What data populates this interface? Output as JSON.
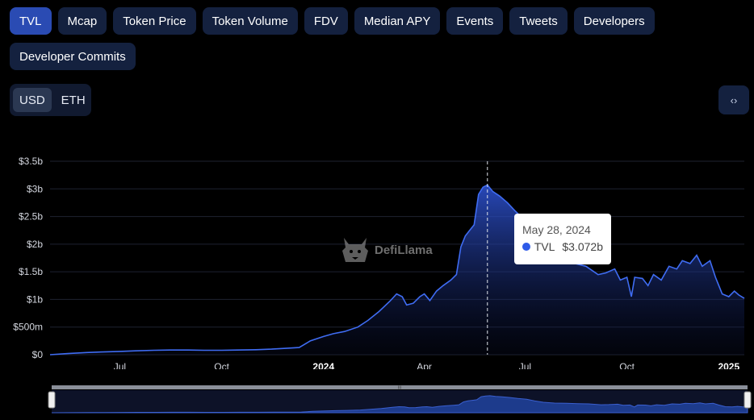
{
  "tabs": [
    {
      "label": "TVL",
      "active": true
    },
    {
      "label": "Mcap"
    },
    {
      "label": "Token Price"
    },
    {
      "label": "Token Volume"
    },
    {
      "label": "FDV"
    },
    {
      "label": "Median APY"
    },
    {
      "label": "Events"
    },
    {
      "label": "Tweets"
    },
    {
      "label": "Developers"
    },
    {
      "label": "Developer Commits"
    }
  ],
  "currency": {
    "options": [
      "USD",
      "ETH"
    ],
    "selected": "USD"
  },
  "embed_icon": "code-brackets-icon",
  "embed_label": "‹›",
  "watermark": {
    "text": "DefiLlama",
    "icon": "llama-logo-icon"
  },
  "tooltip": {
    "date": "May 28, 2024",
    "series": "TVL",
    "value": "$3.072b"
  },
  "navigator": {
    "grip_label": "III"
  },
  "colors": {
    "line": "#3f6cf2",
    "accent": "#2a4bb3",
    "tab_bg": "#14213f"
  },
  "chart_data": {
    "type": "area",
    "title": "",
    "xlabel": "",
    "ylabel": "",
    "ylim": [
      0,
      3.5
    ],
    "y_unit": "billion USD",
    "yticks": [
      "$0",
      "$500m",
      "$1b",
      "$1.5b",
      "$2b",
      "$2.5b",
      "$3b",
      "$3.5b"
    ],
    "xlim": [
      "2023-04-29",
      "2025-01-15"
    ],
    "xticks": [
      {
        "label": "Jul",
        "date": "2023-07-01"
      },
      {
        "label": "Oct",
        "date": "2023-10-01"
      },
      {
        "label": "2024",
        "date": "2024-01-01",
        "bold": true
      },
      {
        "label": "Apr",
        "date": "2024-04-01"
      },
      {
        "label": "Jul",
        "date": "2024-07-01"
      },
      {
        "label": "Oct",
        "date": "2024-10-01"
      },
      {
        "label": "2025",
        "date": "2025-01-01",
        "bold": true
      }
    ],
    "grid": true,
    "legend": "none",
    "series": [
      {
        "name": "TVL",
        "points": [
          [
            "2023-04-29",
            0.0
          ],
          [
            "2023-05-15",
            0.02
          ],
          [
            "2023-06-01",
            0.04
          ],
          [
            "2023-06-15",
            0.05
          ],
          [
            "2023-07-01",
            0.06
          ],
          [
            "2023-07-15",
            0.07
          ],
          [
            "2023-08-01",
            0.08
          ],
          [
            "2023-08-15",
            0.085
          ],
          [
            "2023-09-01",
            0.085
          ],
          [
            "2023-09-15",
            0.08
          ],
          [
            "2023-10-01",
            0.08
          ],
          [
            "2023-10-15",
            0.085
          ],
          [
            "2023-11-01",
            0.09
          ],
          [
            "2023-11-15",
            0.1
          ],
          [
            "2023-12-01",
            0.12
          ],
          [
            "2023-12-10",
            0.13
          ],
          [
            "2023-12-20",
            0.25
          ],
          [
            "2024-01-01",
            0.33
          ],
          [
            "2024-01-10",
            0.38
          ],
          [
            "2024-01-20",
            0.42
          ],
          [
            "2024-02-01",
            0.5
          ],
          [
            "2024-02-10",
            0.62
          ],
          [
            "2024-02-20",
            0.78
          ],
          [
            "2024-03-01",
            0.97
          ],
          [
            "2024-03-07",
            1.1
          ],
          [
            "2024-03-12",
            1.05
          ],
          [
            "2024-03-16",
            0.9
          ],
          [
            "2024-03-22",
            0.93
          ],
          [
            "2024-03-28",
            1.05
          ],
          [
            "2024-04-01",
            1.1
          ],
          [
            "2024-04-06",
            0.98
          ],
          [
            "2024-04-12",
            1.15
          ],
          [
            "2024-04-18",
            1.25
          ],
          [
            "2024-04-25",
            1.35
          ],
          [
            "2024-04-30",
            1.45
          ],
          [
            "2024-05-04",
            1.95
          ],
          [
            "2024-05-08",
            2.15
          ],
          [
            "2024-05-12",
            2.25
          ],
          [
            "2024-05-16",
            2.35
          ],
          [
            "2024-05-20",
            2.9
          ],
          [
            "2024-05-24",
            3.03
          ],
          [
            "2024-05-28",
            3.07
          ],
          [
            "2024-06-02",
            2.95
          ],
          [
            "2024-06-08",
            2.87
          ],
          [
            "2024-06-15",
            2.75
          ],
          [
            "2024-06-22",
            2.6
          ],
          [
            "2024-06-30",
            2.45
          ],
          [
            "2024-07-07",
            2.15
          ],
          [
            "2024-07-15",
            1.9
          ],
          [
            "2024-07-25",
            1.75
          ],
          [
            "2024-08-05",
            1.72
          ],
          [
            "2024-08-15",
            1.65
          ],
          [
            "2024-08-25",
            1.6
          ],
          [
            "2024-09-05",
            1.45
          ],
          [
            "2024-09-12",
            1.48
          ],
          [
            "2024-09-20",
            1.55
          ],
          [
            "2024-09-25",
            1.35
          ],
          [
            "2024-10-01",
            1.4
          ],
          [
            "2024-10-05",
            1.05
          ],
          [
            "2024-10-08",
            1.4
          ],
          [
            "2024-10-15",
            1.38
          ],
          [
            "2024-10-20",
            1.25
          ],
          [
            "2024-10-25",
            1.45
          ],
          [
            "2024-11-01",
            1.35
          ],
          [
            "2024-11-08",
            1.6
          ],
          [
            "2024-11-15",
            1.55
          ],
          [
            "2024-11-20",
            1.7
          ],
          [
            "2024-11-27",
            1.65
          ],
          [
            "2024-12-03",
            1.8
          ],
          [
            "2024-12-08",
            1.6
          ],
          [
            "2024-12-15",
            1.7
          ],
          [
            "2024-12-20",
            1.4
          ],
          [
            "2024-12-26",
            1.1
          ],
          [
            "2025-01-01",
            1.05
          ],
          [
            "2025-01-06",
            1.15
          ],
          [
            "2025-01-10",
            1.08
          ],
          [
            "2025-01-15",
            1.02
          ]
        ]
      }
    ],
    "highlight": {
      "date": "2024-05-28",
      "value": 3.072
    }
  }
}
